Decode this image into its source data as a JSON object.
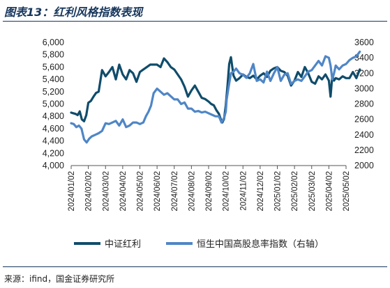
{
  "figure": {
    "title": "图表13：红利风格指数表现",
    "source": "来源：ifind，国金证券研究所"
  },
  "chart_data": {
    "type": "line",
    "title": "",
    "x_labels": [
      "2024/01/02",
      "2024/02/02",
      "2024/03/02",
      "2024/04/02",
      "2024/05/02",
      "2024/06/02",
      "2024/07/02",
      "2024/08/02",
      "2024/09/02",
      "2024/10/02",
      "2024/11/02",
      "2024/12/02",
      "2025/01/02",
      "2025/02/02",
      "2025/03/02",
      "2025/04/02",
      "2025/05/02"
    ],
    "y_left": {
      "range": [
        4000,
        6000
      ],
      "ticks": [
        "4,000",
        "4,200",
        "4,400",
        "4,600",
        "4,800",
        "5,000",
        "5,200",
        "5,400",
        "5,600",
        "5,800",
        "6,000"
      ]
    },
    "y_right": {
      "range": [
        2000,
        3600
      ],
      "ticks": [
        "2000",
        "2200",
        "2400",
        "2600",
        "2800",
        "3000",
        "3200",
        "3400",
        "3600"
      ]
    },
    "series": [
      {
        "name": "中证红利",
        "axis": "left",
        "color": "#0f4c6b",
        "x": [
          0,
          0.12,
          0.25,
          0.38,
          0.5,
          0.62,
          0.75,
          0.88,
          1.0,
          1.15,
          1.3,
          1.45,
          1.6,
          1.8,
          2.0,
          2.2,
          2.4,
          2.6,
          2.8,
          3.0,
          3.2,
          3.4,
          3.6,
          3.8,
          4.0,
          4.2,
          4.4,
          4.6,
          4.8,
          5.0,
          5.2,
          5.4,
          5.6,
          5.8,
          6.0,
          6.2,
          6.4,
          6.6,
          6.8,
          7.0,
          7.2,
          7.4,
          7.6,
          7.8,
          8.0,
          8.15,
          8.3,
          8.45,
          8.6,
          8.7,
          8.8,
          8.9,
          9.0,
          9.1,
          9.2,
          9.3,
          9.45,
          9.6,
          9.8,
          10.0,
          10.2,
          10.4,
          10.6,
          10.8,
          11.0,
          11.2,
          11.4,
          11.6,
          11.8,
          12.0,
          12.2,
          12.4,
          12.6,
          12.8,
          13.0,
          13.2,
          13.4,
          13.6,
          13.8,
          14.0,
          14.2,
          14.4,
          14.6,
          14.8,
          15.0,
          15.1,
          15.2,
          15.3,
          15.4,
          15.6,
          15.8,
          16.0,
          16.2,
          16.4,
          16.6,
          16.8
        ],
        "values": [
          4860,
          4850,
          4840,
          4820,
          4880,
          4750,
          4720,
          4820,
          5020,
          5050,
          5120,
          5180,
          5200,
          5550,
          5450,
          5520,
          5600,
          5400,
          5640,
          5480,
          5400,
          5550,
          5500,
          5360,
          5520,
          5560,
          5600,
          5640,
          5640,
          5640,
          5600,
          5740,
          5680,
          5600,
          5560,
          5480,
          5400,
          5280,
          5120,
          5220,
          5300,
          5200,
          5100,
          5080,
          5040,
          5000,
          4980,
          4900,
          4840,
          4760,
          4700,
          4760,
          4980,
          5300,
          5650,
          5760,
          5460,
          5380,
          5420,
          5480,
          5440,
          5420,
          5460,
          5400,
          5460,
          5500,
          5440,
          5540,
          5580,
          5600,
          5540,
          5520,
          5460,
          5300,
          5380,
          5520,
          5440,
          5600,
          5500,
          5360,
          5330,
          5450,
          5400,
          5480,
          5380,
          5120,
          5460,
          5380,
          5420,
          5400,
          5450,
          5420,
          5420,
          5520,
          5420,
          5560
        ]
      },
      {
        "name": "恒生中国高股息率指数（右轴）",
        "axis": "right",
        "color": "#4f86c6",
        "x": [
          0,
          0.15,
          0.3,
          0.45,
          0.6,
          0.75,
          0.9,
          1.05,
          1.2,
          1.4,
          1.6,
          1.8,
          2.0,
          2.2,
          2.4,
          2.6,
          2.8,
          3.0,
          3.2,
          3.4,
          3.6,
          3.8,
          4.0,
          4.2,
          4.35,
          4.5,
          4.65,
          4.8,
          5.0,
          5.2,
          5.4,
          5.6,
          5.8,
          6.0,
          6.2,
          6.4,
          6.6,
          6.8,
          7.0,
          7.2,
          7.4,
          7.6,
          7.8,
          8.0,
          8.2,
          8.4,
          8.6,
          8.75,
          8.9,
          9.0,
          9.05,
          9.15,
          9.3,
          9.45,
          9.6,
          9.8,
          10.0,
          10.2,
          10.4,
          10.6,
          10.8,
          11.0,
          11.2,
          11.4,
          11.6,
          11.8,
          12.0,
          12.2,
          12.4,
          12.6,
          12.8,
          13.0,
          13.2,
          13.4,
          13.6,
          13.8,
          14.0,
          14.2,
          14.4,
          14.6,
          14.8,
          15.0,
          15.1,
          15.2,
          15.3,
          15.4,
          15.6,
          15.8,
          16.0,
          16.2,
          16.4,
          16.6,
          16.8
        ],
        "values": [
          2550,
          2540,
          2500,
          2520,
          2480,
          2340,
          2300,
          2350,
          2380,
          2400,
          2420,
          2450,
          2550,
          2540,
          2560,
          2580,
          2520,
          2600,
          2500,
          2520,
          2560,
          2560,
          2540,
          2560,
          2640,
          2700,
          2780,
          2940,
          3000,
          2960,
          2920,
          2940,
          2900,
          2860,
          2860,
          2800,
          2820,
          2740,
          2740,
          2700,
          2710,
          2690,
          2700,
          2680,
          2660,
          2640,
          2640,
          2560,
          2620,
          2700,
          2860,
          3000,
          3200,
          3220,
          3260,
          3200,
          3180,
          3140,
          3200,
          3320,
          3100,
          3120,
          3080,
          3220,
          3100,
          3200,
          3280,
          3100,
          3180,
          3200,
          3060,
          3100,
          3120,
          3100,
          3160,
          3220,
          3240,
          3300,
          3360,
          3300,
          3420,
          3400,
          3300,
          3120,
          3200,
          3300,
          3250,
          3300,
          3320,
          3370,
          3400,
          3420,
          3480
        ]
      }
    ],
    "legend": {
      "position": "bottom"
    },
    "grid": false
  }
}
